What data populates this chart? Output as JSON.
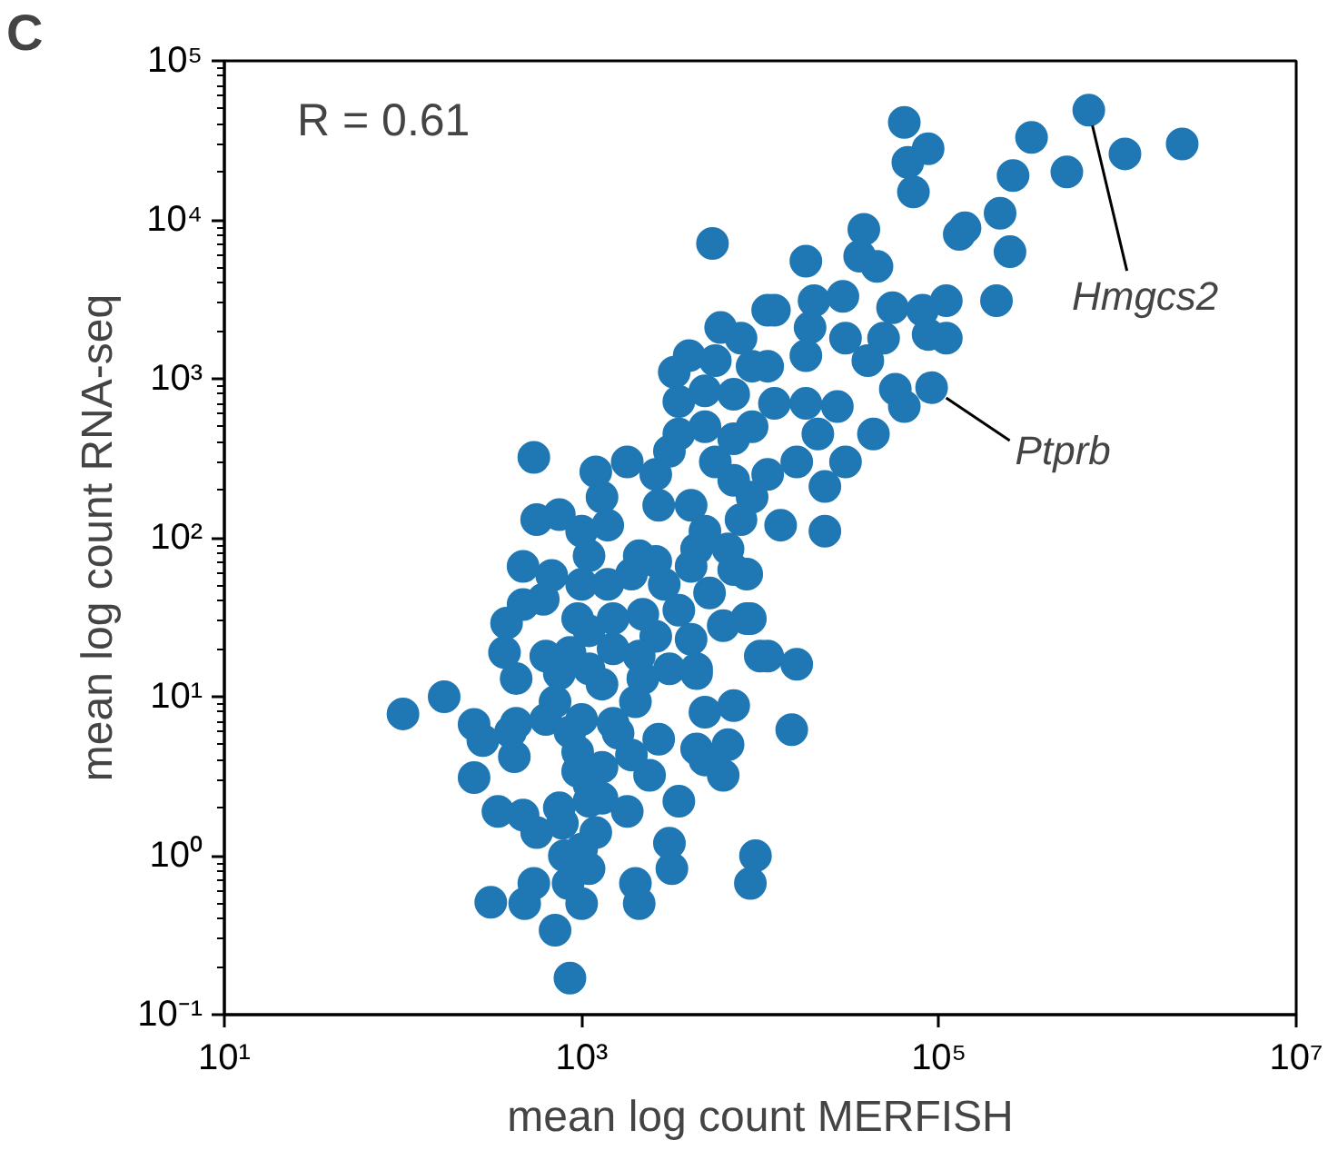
{
  "chart_data": {
    "type": "scatter",
    "xlabel": "mean log count MERFISH",
    "ylabel": "mean log count RNA-seq",
    "log": "xy",
    "grid": false,
    "marker": "circle",
    "xlim": [
      10,
      10000000
    ],
    "ylim": [
      0.1,
      100000
    ],
    "xticks": [
      {
        "value": 10,
        "label": "10¹"
      },
      {
        "value": 1000,
        "label": "10³"
      },
      {
        "value": 100000,
        "label": "10⁵"
      },
      {
        "value": 10000000,
        "label": "10⁷"
      }
    ],
    "yticks": [
      {
        "value": 0.1,
        "label": "10⁻¹"
      },
      {
        "value": 1,
        "label": "10⁰"
      },
      {
        "value": 10,
        "label": "10¹"
      },
      {
        "value": 100,
        "label": "10²"
      },
      {
        "value": 1000,
        "label": "10³"
      },
      {
        "value": 10000,
        "label": "10⁴"
      },
      {
        "value": 100000,
        "label": "10⁵"
      }
    ],
    "annotations": [
      "C",
      "R = 0.61",
      {
        "text": "Hmgcs2",
        "x": 690000,
        "y": 49000
      },
      {
        "text": "Ptprb",
        "x": 91000,
        "y": 880
      }
    ],
    "series": [
      {
        "color": "#1f77b4",
        "x": [
          64000,
          87000,
          67000,
          72000,
          690000,
          330000,
          1100000,
          2300000,
          520000,
          260000,
          220000,
          140000,
          130000,
          250000,
          38000,
          18000,
          36000,
          45000,
          210000,
          110000,
          81000,
          55000,
          29000,
          20000,
          12000,
          19000,
          30000,
          49000,
          87000,
          110000,
          18000,
          40000,
          91000,
          57000,
          64000,
          43000,
          27000,
          18000,
          12000,
          11000,
          21000,
          30000,
          23000,
          16000,
          11000,
          23000,
          13000,
          8400,
          8800,
          11000,
          16000,
          15000,
          9400,
          8800,
          5400,
          6000,
          7800,
          11000,
          4000,
          5600,
          9000,
          3300,
          4900,
          7100,
          3500,
          540,
          1200,
          1800,
          1300,
          2600,
          3500,
          4900,
          7100,
          9000,
          3100,
          5600,
          7100,
          2700,
          560,
          750,
          1000,
          1400,
          4100,
          7800,
          4900,
          9000,
          470,
          680,
          1100,
          1000,
          1400,
          2100,
          2600,
          1900,
          2900,
          4400,
          6600,
          4100,
          7100,
          5200,
          470,
          610,
          380,
          950,
          1500,
          2200,
          3500,
          8400,
          6200,
          1100,
          2600,
          370,
          630,
          860,
          1500,
          2100,
          4100,
          10000,
          3100,
          4400,
          430,
          750,
          1100,
          1300,
          2200,
          4400,
          170,
          710,
          2000,
          7100,
          100,
          250,
          280,
          430,
          630,
          1000,
          1500,
          4900,
          400,
          860,
          1600,
          2700,
          4400,
          6600,
          420,
          950,
          1900,
          4900,
          250,
          950,
          1300,
          2400,
          6200,
          1100,
          340,
          470,
          560,
          750,
          1100,
          1300,
          1800,
          3500,
          780,
          1200,
          800,
          1000,
          1100,
          3100,
          3200,
          540,
          840,
          2000,
          310,
          480,
          1000,
          2100,
          710,
          860
        ],
        "values": [
          41000,
          28000,
          23000,
          15000,
          49000,
          33000,
          26000,
          30000,
          20000,
          19000,
          11000,
          8900,
          8100,
          6300,
          8700,
          5500,
          5900,
          5100,
          3100,
          3100,
          2700,
          2800,
          3300,
          3100,
          2700,
          2100,
          1800,
          1800,
          1900,
          1800,
          1400,
          1300,
          880,
          860,
          670,
          450,
          670,
          700,
          700,
          1200,
          450,
          300,
          210,
          300,
          250,
          110,
          120,
          59,
          31,
          18,
          16,
          6.2,
          1.0,
          0.67,
          7100,
          2100,
          1800,
          2700,
          1400,
          1300,
          1200,
          1100,
          840,
          800,
          720,
          320,
          260,
          300,
          180,
          250,
          450,
          500,
          420,
          500,
          350,
          300,
          230,
          160,
          130,
          140,
          110,
          120,
          160,
          130,
          110,
          180,
          66,
          58,
          77,
          51,
          51,
          77,
          71,
          59,
          51,
          85,
          85,
          66,
          63,
          45,
          38,
          41,
          29,
          31,
          31,
          33,
          35,
          31,
          28,
          26,
          24,
          19,
          18,
          19,
          20,
          18,
          23,
          18,
          15,
          15,
          13,
          14,
          15,
          12,
          13,
          14,
          10,
          9.3,
          9.3,
          8.8,
          7.8,
          6.7,
          5.3,
          6.8,
          7.2,
          7.2,
          6.8,
          8.0,
          6.0,
          6.0,
          5.9,
          5.4,
          4.7,
          5.0,
          4.2,
          4.5,
          4.3,
          4.0,
          3.1,
          3.4,
          3.6,
          3.2,
          3.2,
          2.8,
          1.9,
          1.8,
          1.4,
          2.0,
          2.2,
          2.3,
          1.9,
          2.2,
          1.6,
          1.4,
          1.0,
          1.1,
          0.83,
          1.2,
          0.83,
          0.67,
          0.67,
          0.67,
          0.51,
          0.5,
          0.5,
          0.5,
          0.34,
          0.17
        ]
      }
    ]
  }
}
